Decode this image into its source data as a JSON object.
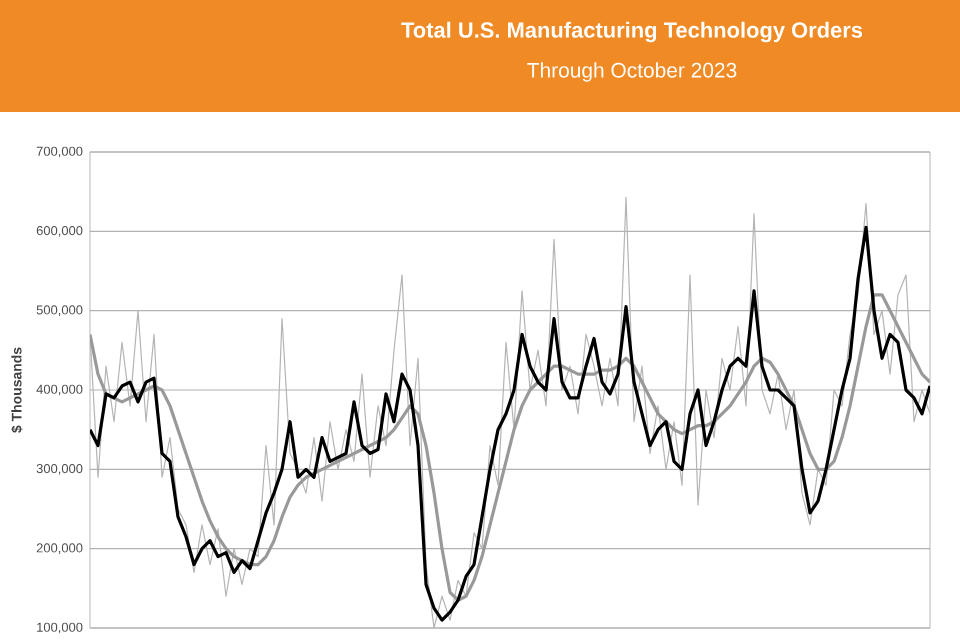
{
  "chart_data": {
    "type": "line",
    "title": "Total U.S. Manufacturing Technology Orders",
    "subtitle": "Through October 2023",
    "ylabel": "$ Thousands",
    "categories": [
      null,
      null,
      null,
      null,
      null,
      null,
      null,
      null,
      null,
      null,
      null,
      null,
      null,
      null,
      null,
      null,
      null,
      null,
      null,
      null,
      null,
      null,
      null,
      null,
      null,
      null,
      null,
      null,
      null,
      null,
      null,
      null,
      null,
      null,
      null,
      null,
      null,
      null,
      null,
      null,
      null,
      null,
      null,
      null,
      null,
      null,
      null,
      null,
      null,
      null,
      null,
      null,
      null,
      null,
      null,
      null,
      null,
      null,
      null,
      null,
      null,
      null,
      null,
      null,
      null,
      null,
      null,
      null,
      null,
      null,
      null,
      null,
      null,
      null,
      null,
      null,
      null,
      null,
      null,
      null,
      null,
      null,
      null,
      null,
      null,
      null,
      null,
      null,
      null,
      null,
      null,
      null,
      null,
      null,
      null,
      null,
      null,
      null,
      null,
      null,
      null,
      null,
      null,
      null,
      null,
      null
    ],
    "series": [
      {
        "color": "#b4b4b4",
        "values": [
          470000,
          290000,
          430000,
          360000,
          460000,
          380000,
          500000,
          360000,
          470000,
          290000,
          340000,
          250000,
          230000,
          170000,
          230000,
          180000,
          225000,
          140000,
          200000,
          155000,
          200000,
          190000,
          330000,
          230000,
          490000,
          320000,
          300000,
          270000,
          340000,
          260000,
          360000,
          300000,
          350000,
          310000,
          420000,
          290000,
          380000,
          330000,
          450000,
          545000,
          330000,
          440000,
          180000,
          100000,
          140000,
          110000,
          160000,
          140000,
          220000,
          200000,
          330000,
          280000,
          460000,
          350000,
          525000,
          400000,
          450000,
          380000,
          590000,
          400000,
          430000,
          370000,
          470000,
          430000,
          380000,
          440000,
          380000,
          643000,
          360000,
          430000,
          320000,
          380000,
          300000,
          360000,
          280000,
          545000,
          255000,
          400000,
          340000,
          440000,
          400000,
          480000,
          380000,
          622000,
          400000,
          370000,
          420000,
          350000,
          400000,
          270000,
          230000,
          300000,
          280000,
          400000,
          380000,
          470000,
          520000,
          635000,
          470000,
          500000,
          420000,
          520000,
          545000,
          360000,
          400000,
          370000
        ]
      },
      {
        "color": "#999999",
        "values": [
          470000,
          420000,
          395000,
          390000,
          385000,
          390000,
          395000,
          400000,
          405000,
          400000,
          380000,
          350000,
          320000,
          290000,
          260000,
          235000,
          215000,
          200000,
          190000,
          185000,
          180000,
          180000,
          190000,
          210000,
          240000,
          265000,
          280000,
          290000,
          295000,
          300000,
          305000,
          310000,
          315000,
          320000,
          325000,
          330000,
          335000,
          340000,
          350000,
          365000,
          380000,
          370000,
          330000,
          270000,
          200000,
          145000,
          135000,
          140000,
          160000,
          190000,
          230000,
          270000,
          310000,
          350000,
          380000,
          400000,
          410000,
          420000,
          430000,
          430000,
          425000,
          420000,
          420000,
          420000,
          425000,
          425000,
          430000,
          440000,
          430000,
          410000,
          390000,
          370000,
          360000,
          350000,
          345000,
          350000,
          355000,
          355000,
          360000,
          370000,
          380000,
          395000,
          410000,
          430000,
          440000,
          435000,
          420000,
          400000,
          380000,
          350000,
          320000,
          300000,
          300000,
          310000,
          340000,
          380000,
          430000,
          480000,
          520000,
          520000,
          500000,
          480000,
          460000,
          440000,
          420000,
          410000
        ]
      },
      {
        "color": "#000000",
        "values": [
          350000,
          330000,
          395000,
          390000,
          405000,
          410000,
          385000,
          410000,
          415000,
          320000,
          310000,
          240000,
          215000,
          180000,
          200000,
          210000,
          190000,
          195000,
          170000,
          185000,
          175000,
          210000,
          245000,
          270000,
          300000,
          360000,
          290000,
          300000,
          290000,
          340000,
          310000,
          315000,
          320000,
          385000,
          330000,
          320000,
          325000,
          395000,
          360000,
          420000,
          400000,
          330000,
          155000,
          125000,
          110000,
          120000,
          135000,
          165000,
          180000,
          240000,
          300000,
          350000,
          370000,
          400000,
          470000,
          430000,
          410000,
          400000,
          490000,
          410000,
          390000,
          390000,
          430000,
          465000,
          410000,
          395000,
          420000,
          505000,
          410000,
          370000,
          330000,
          350000,
          360000,
          310000,
          300000,
          370000,
          400000,
          330000,
          360000,
          400000,
          430000,
          440000,
          430000,
          525000,
          430000,
          400000,
          400000,
          390000,
          380000,
          300000,
          245000,
          260000,
          300000,
          350000,
          400000,
          440000,
          540000,
          605000,
          500000,
          440000,
          470000,
          460000,
          400000,
          390000,
          370000,
          405000
        ]
      }
    ],
    "ylim": [
      100000,
      700000
    ],
    "yticks": [
      {
        "value": 100000,
        "label": "100,000"
      },
      {
        "value": 200000,
        "label": "200,000"
      },
      {
        "value": 300000,
        "label": "300,000"
      },
      {
        "value": 400000,
        "label": "400,000"
      },
      {
        "value": 500000,
        "label": "500,000"
      },
      {
        "value": 600000,
        "label": "600,000"
      },
      {
        "value": 700000,
        "label": "700,000"
      }
    ],
    "grid": "y",
    "tick_labels": "y"
  }
}
